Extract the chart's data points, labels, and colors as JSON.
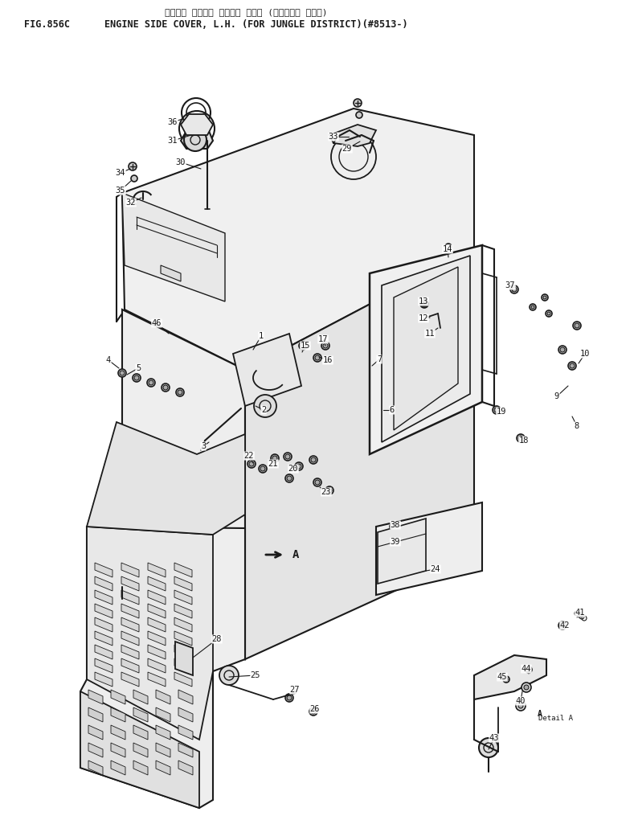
{
  "title_jp": "エンジン サイド・ カバー， ヒダリ (ジャングル ショウ)",
  "title_en": "ENGINE SIDE COVER, L.H. (FOR JUNGLE DISTRICT)(#8513-)",
  "fig_label": "FIG.856C",
  "bg_color": "#ffffff",
  "lc": "#1a1a1a"
}
